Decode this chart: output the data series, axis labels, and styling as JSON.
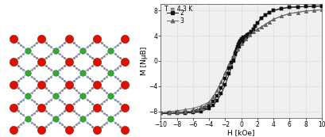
{
  "temp_label": "T = 4.3 K",
  "legend_2": "2",
  "legend_3": "3",
  "xlabel": "H [kOe]",
  "ylabel": "M [NμB]",
  "xlim": [
    -10,
    10
  ],
  "ylim": [
    -9,
    9
  ],
  "xticks": [
    -10,
    -8,
    -6,
    -4,
    -2,
    0,
    2,
    4,
    6,
    8,
    10
  ],
  "yticks": [
    -8,
    -4,
    0,
    4,
    8
  ],
  "background_color": "#f0f0f0",
  "curve2_color": "#111111",
  "curve3_color": "#666666",
  "marker2": "s",
  "marker3": "^",
  "grid_color": "#bbbbbb",
  "H2_upper": [
    -10,
    -9,
    -8,
    -7,
    -6,
    -5.5,
    -5,
    -4.5,
    -4,
    -3.5,
    -3,
    -2.5,
    -2,
    -1.75,
    -1.5,
    -1.25,
    -1,
    -0.75,
    -0.5,
    -0.25,
    0,
    0.1,
    0.2,
    0.3,
    0.4,
    0.5,
    0.6,
    0.7,
    0.8,
    0.9,
    1.0,
    1.25,
    1.5,
    1.75,
    2,
    2.5,
    3,
    3.5,
    4,
    5,
    6,
    7,
    8,
    9,
    10
  ],
  "M2_upper": [
    -8.3,
    -8.3,
    -8.2,
    -8.15,
    -8.0,
    -7.9,
    -7.7,
    -7.4,
    -7.0,
    -6.4,
    -5.5,
    -4.3,
    -2.8,
    -2.0,
    -1.1,
    -0.2,
    0.5,
    1.2,
    1.8,
    2.3,
    2.8,
    3.0,
    3.2,
    3.4,
    3.5,
    3.7,
    3.8,
    3.95,
    4.05,
    4.2,
    4.3,
    4.6,
    5.0,
    5.5,
    6.0,
    6.8,
    7.3,
    7.7,
    8.0,
    8.3,
    8.5,
    8.55,
    8.6,
    8.65,
    8.7
  ],
  "H2_lower": [
    10,
    9,
    8,
    7,
    6,
    5,
    4,
    3.5,
    3,
    2.5,
    2,
    1.75,
    1.5,
    1.25,
    1.0,
    0.75,
    0.5,
    0.25,
    0,
    -0.1,
    -0.2,
    -0.3,
    -0.4,
    -0.5,
    -0.6,
    -0.7,
    -0.8,
    -1.0,
    -1.25,
    -1.5,
    -2,
    -2.5,
    -3,
    -3.5,
    -4,
    -5,
    -6,
    -7,
    -8,
    -9,
    -10
  ],
  "M2_lower": [
    8.7,
    8.65,
    8.6,
    8.55,
    8.5,
    8.3,
    8.0,
    7.7,
    7.3,
    6.8,
    6.0,
    5.5,
    5.0,
    4.6,
    4.3,
    4.1,
    3.9,
    3.7,
    3.5,
    3.3,
    3.1,
    2.9,
    2.6,
    2.3,
    1.9,
    1.5,
    1.0,
    0.0,
    -1.0,
    -2.0,
    -3.8,
    -5.2,
    -6.3,
    -7.0,
    -7.5,
    -8.0,
    -8.2,
    -8.25,
    -8.3,
    -8.3,
    -8.3
  ],
  "H3_upper": [
    -10,
    -9,
    -8,
    -7,
    -6,
    -5.5,
    -5,
    -4.5,
    -4,
    -3.5,
    -3,
    -2.5,
    -2,
    -1.5,
    -1,
    -0.5,
    0,
    0.5,
    1,
    1.5,
    2,
    2.5,
    3,
    3.5,
    4,
    5,
    6,
    7,
    8,
    9,
    10
  ],
  "M3_upper": [
    -8.2,
    -8.2,
    -8.1,
    -8.0,
    -7.9,
    -7.7,
    -7.5,
    -7.1,
    -6.5,
    -5.7,
    -4.6,
    -3.3,
    -1.9,
    -0.5,
    0.8,
    1.9,
    2.8,
    3.5,
    4.1,
    4.6,
    5.0,
    5.4,
    5.8,
    6.2,
    6.6,
    7.1,
    7.5,
    7.7,
    7.9,
    8.0,
    8.1
  ],
  "H3_lower": [
    10,
    9,
    8,
    7,
    6,
    5,
    4,
    3.5,
    3,
    2.5,
    2,
    1.5,
    1,
    0.5,
    0,
    -0.5,
    -1,
    -1.5,
    -2,
    -2.5,
    -3,
    -3.5,
    -4,
    -5,
    -6,
    -7,
    -8,
    -9,
    -10
  ],
  "M3_lower": [
    8.1,
    8.0,
    7.9,
    7.7,
    7.5,
    7.1,
    6.6,
    6.2,
    5.8,
    5.4,
    5.0,
    4.6,
    4.1,
    3.5,
    2.8,
    1.9,
    0.8,
    -0.5,
    -1.9,
    -3.3,
    -4.6,
    -5.7,
    -6.5,
    -7.1,
    -7.5,
    -7.7,
    -7.9,
    -8.0,
    -8.2
  ],
  "crystal": {
    "red_color": "#dd1100",
    "green_color": "#33aa33",
    "gray_color": "#888888",
    "blue_color": "#8899cc",
    "line_color": "#666666",
    "bg_color": "#e8e8e8"
  }
}
